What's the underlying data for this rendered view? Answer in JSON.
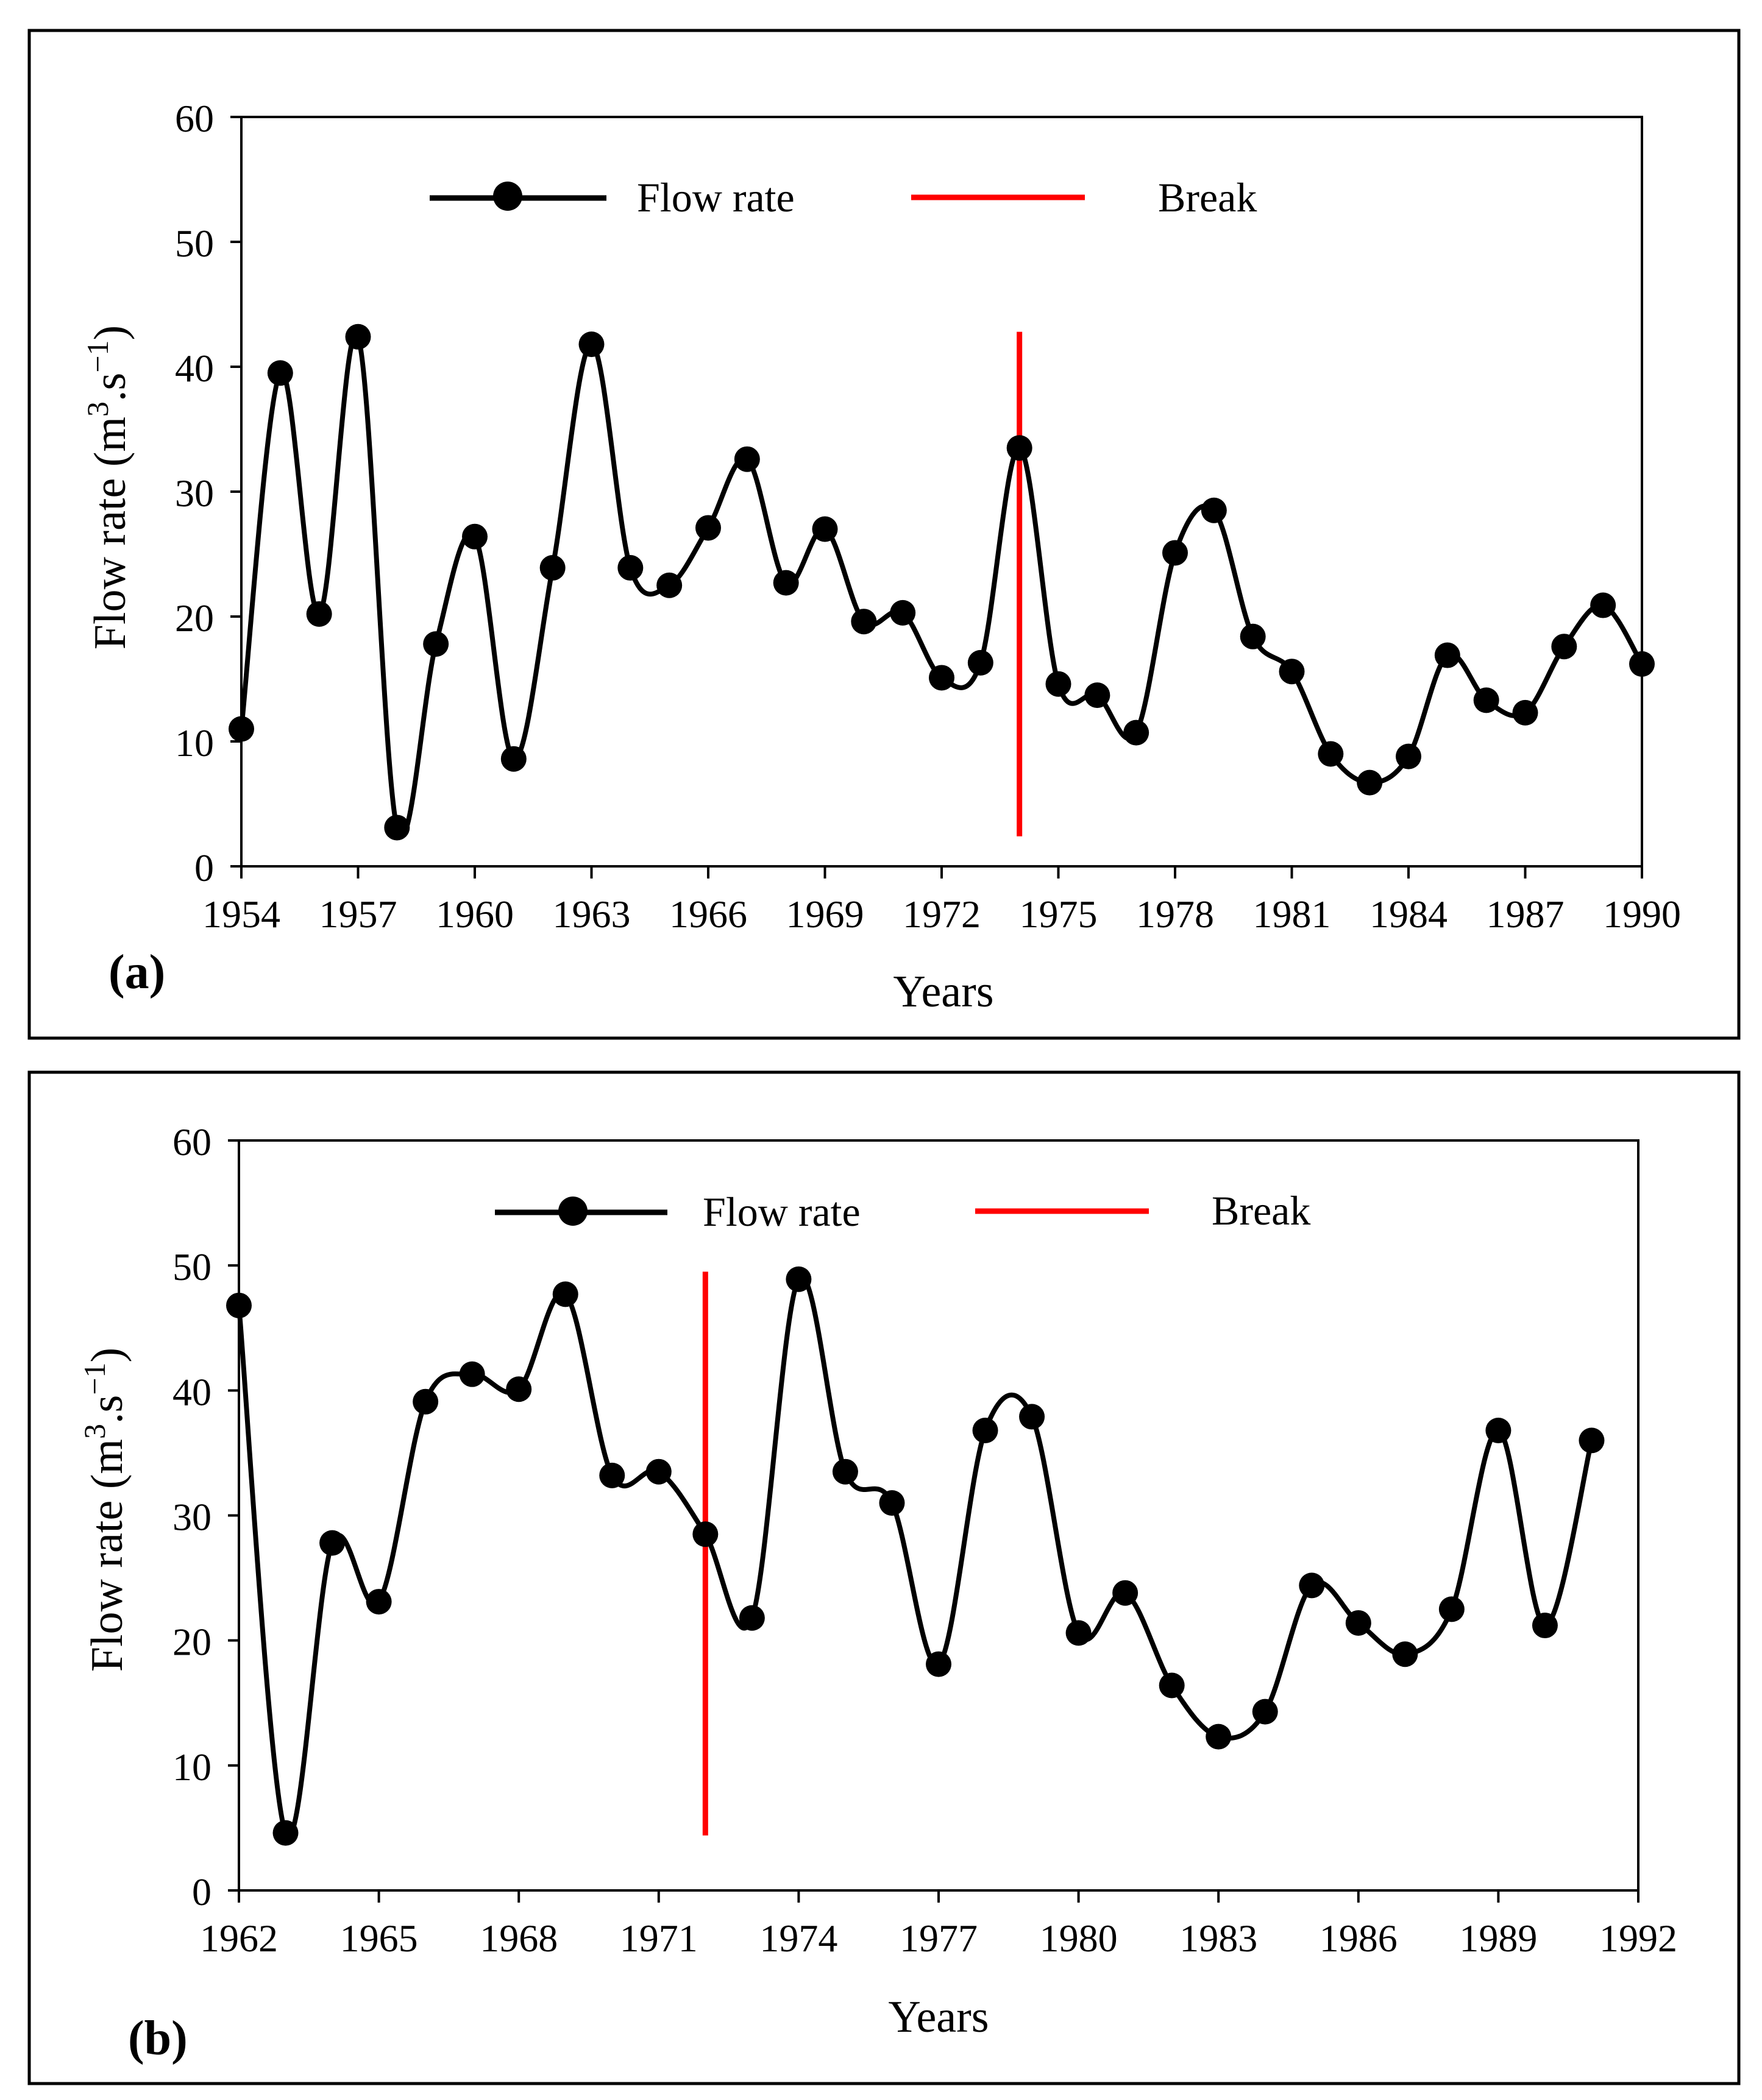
{
  "chart_data": [
    {
      "type": "line",
      "panel_label": "(a)",
      "xlabel": "Years",
      "ylabel_main": "Flow rate",
      "ylabel_unit": {
        "base": "m",
        "sup1": "3",
        "mid": ".s",
        "sup2": "−1"
      },
      "xlim": [
        1954,
        1990
      ],
      "ylim": [
        0,
        60
      ],
      "xticks": [
        1954,
        1957,
        1960,
        1963,
        1966,
        1969,
        1972,
        1975,
        1978,
        1981,
        1984,
        1987,
        1990
      ],
      "yticks": [
        0,
        10,
        20,
        30,
        40,
        50,
        60
      ],
      "legend": {
        "series_label": "Flow rate",
        "break_label": "Break"
      },
      "series": [
        {
          "name": "Flow rate",
          "color": "#000000",
          "x": [
            1954,
            1955,
            1956,
            1957,
            1958,
            1959,
            1960,
            1961,
            1962,
            1963,
            1964,
            1965,
            1966,
            1967,
            1968,
            1969,
            1970,
            1971,
            1972,
            1973,
            1974,
            1975,
            1976,
            1977,
            1978,
            1979,
            1980,
            1981,
            1982,
            1983,
            1984,
            1985,
            1986,
            1987,
            1988,
            1989,
            1990
          ],
          "values": [
            11,
            39.5,
            20.2,
            42.4,
            3.1,
            17.8,
            26.4,
            8.6,
            23.9,
            41.8,
            23.9,
            22.5,
            27.1,
            32.6,
            22.7,
            27,
            19.6,
            20.3,
            15.1,
            16.3,
            33.5,
            14.6,
            13.7,
            10.7,
            25.1,
            28.5,
            18.4,
            15.6,
            9,
            6.7,
            8.8,
            16.9,
            13.3,
            12.3,
            17.6,
            20.9,
            16.2
          ]
        }
      ],
      "break": {
        "x": 1974,
        "y_range": [
          2.4,
          42.8
        ],
        "color": "#ff0000"
      }
    },
    {
      "type": "line",
      "panel_label": "(b)",
      "xlabel": "Years",
      "ylabel_main": "Flow rate",
      "ylabel_unit": {
        "base": "m",
        "sup1": "3",
        "mid": ".s",
        "sup2": "−1"
      },
      "xlim": [
        1962,
        1992
      ],
      "ylim": [
        0,
        60
      ],
      "xticks": [
        1962,
        1965,
        1968,
        1971,
        1974,
        1977,
        1980,
        1983,
        1986,
        1989,
        1992
      ],
      "yticks": [
        0,
        10,
        20,
        30,
        40,
        50,
        60
      ],
      "legend": {
        "series_label": "Flow rate",
        "break_label": "Break"
      },
      "series": [
        {
          "name": "Flow rate",
          "color": "#000000",
          "x": [
            1962,
            1963,
            1964,
            1965,
            1966,
            1967,
            1968,
            1969,
            1970,
            1971,
            1972,
            1973,
            1974,
            1975,
            1976,
            1977,
            1978,
            1979,
            1980,
            1981,
            1982,
            1983,
            1984,
            1985,
            1986,
            1987,
            1988,
            1989,
            1990,
            1991
          ],
          "values": [
            46.8,
            4.6,
            27.8,
            23.1,
            39.1,
            41.3,
            40.1,
            47.7,
            33.2,
            33.5,
            28.5,
            21.8,
            48.9,
            33.5,
            31,
            18.1,
            36.8,
            37.9,
            20.6,
            23.8,
            16.4,
            12.3,
            14.3,
            24.4,
            21.4,
            18.9,
            22.5,
            36.8,
            21.2,
            36
          ]
        }
      ],
      "break": {
        "x": 1972,
        "y_range": [
          4.4,
          49.5
        ],
        "color": "#ff0000"
      }
    }
  ]
}
